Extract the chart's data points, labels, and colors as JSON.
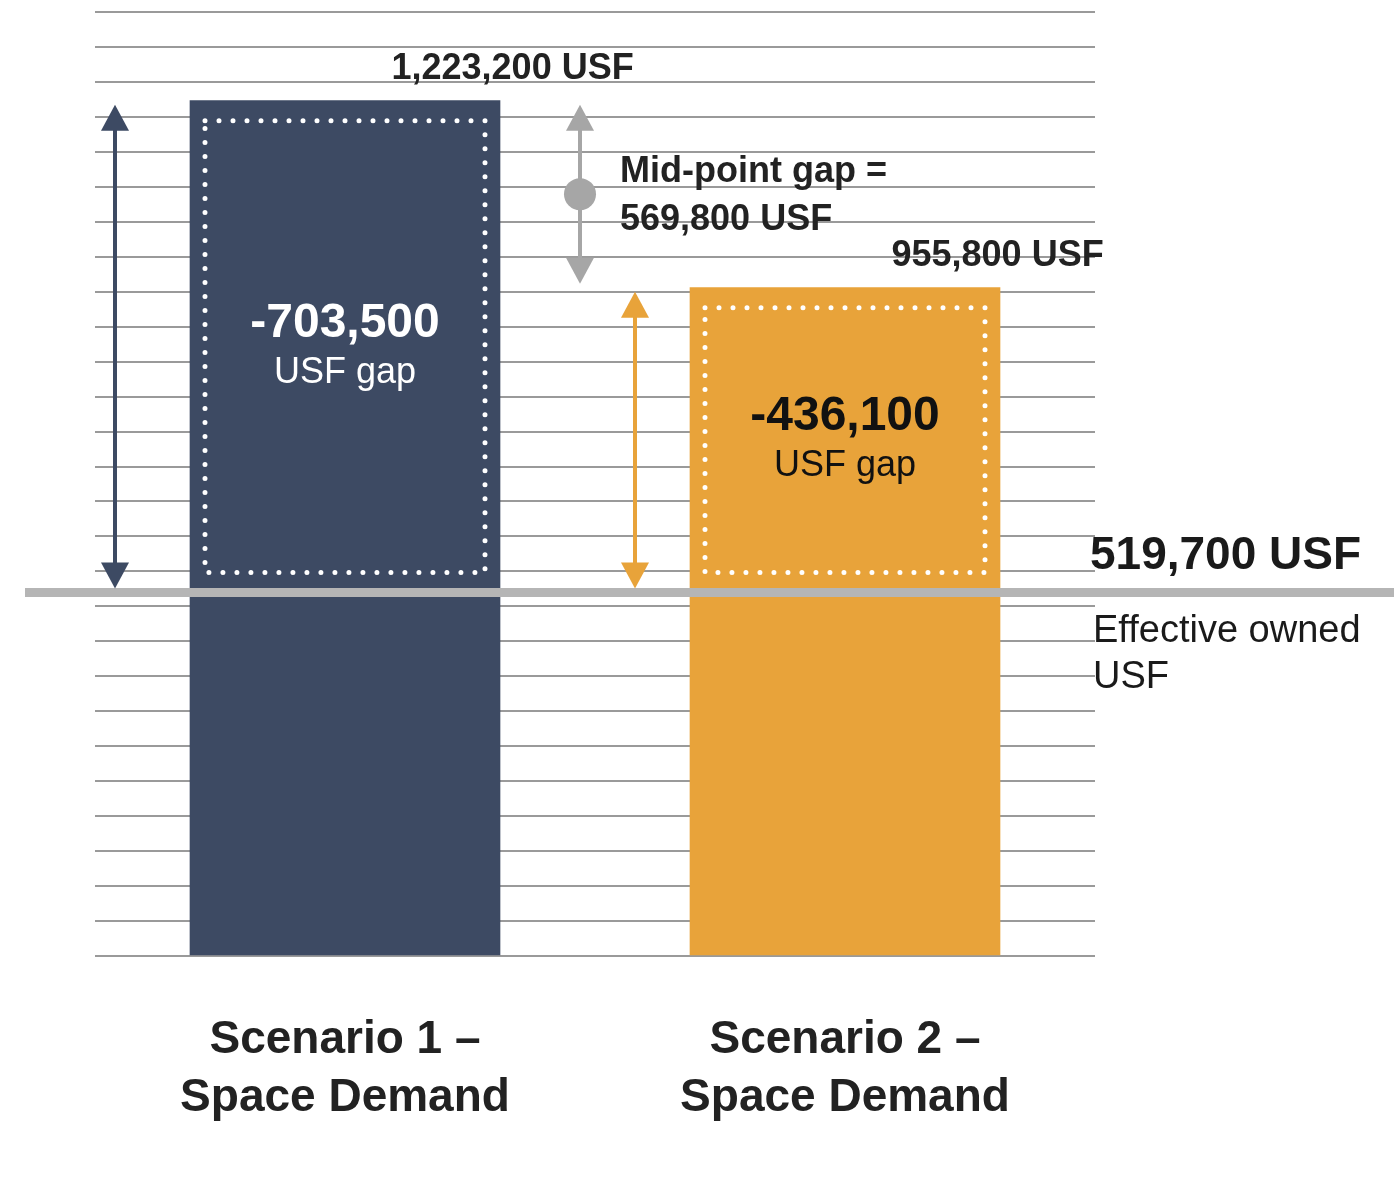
{
  "chart_data": {
    "type": "bar",
    "categories": [
      "Scenario 1 – Space Demand",
      "Scenario 2 – Space Demand"
    ],
    "values": [
      1223200,
      955800
    ],
    "colors": [
      "#3d4a63",
      "#e8a33a"
    ],
    "value_labels": [
      "1,223,200 USF",
      "955,800 USF"
    ],
    "grid": "y",
    "tick_labels": "x",
    "ref_lines": [
      {
        "axis": "y",
        "value": 519700,
        "label": "519,700 USF",
        "color": "#b5b5b5"
      }
    ],
    "annotations": [
      "-703,500 USF gap",
      "-436,100 USF gap",
      "Mid-point gap = 569,800 USF",
      "Effective owned USF"
    ]
  }
}
